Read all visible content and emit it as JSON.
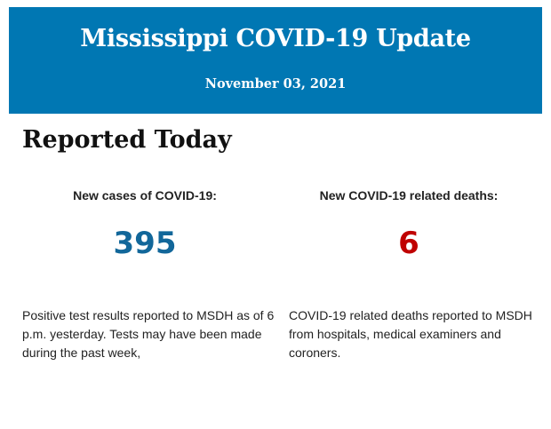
{
  "header": {
    "title": "Mississippi COVID-19 Update",
    "date": "November 03, 2021",
    "background_color": "#0077b3"
  },
  "section": {
    "title": "Reported Today"
  },
  "stats": [
    {
      "label": "New cases of COVID-19:",
      "value": "395",
      "color": "#12679a",
      "description": "Positive test results reported to MSDH as of 6 p.m. yesterday. Tests may have been made during the past week,"
    },
    {
      "label": "New COVID-19 related deaths:",
      "value": "6",
      "color": "#c00000",
      "description": "COVID-19 related deaths reported to MSDH from hospitals, medical examiners and coroners."
    }
  ]
}
